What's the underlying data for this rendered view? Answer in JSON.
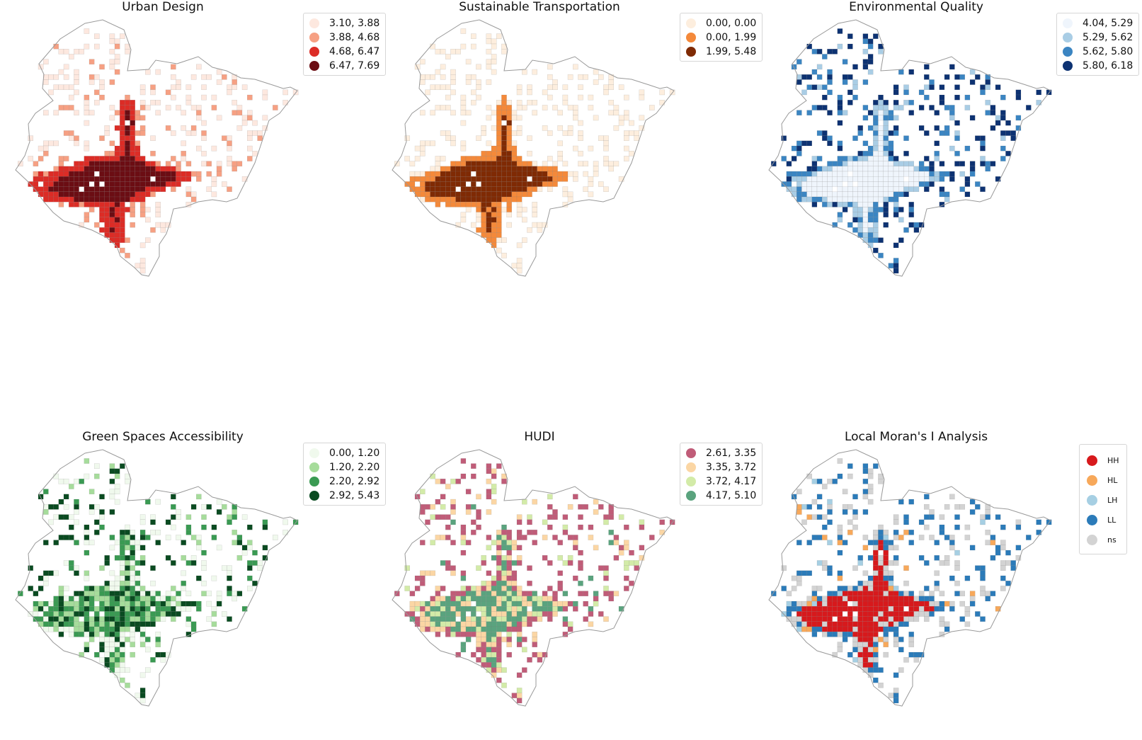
{
  "outline_color": "#999999",
  "panels": [
    {
      "id": "urban-design",
      "title": "Urban Design",
      "legend": [
        {
          "label": "3.10, 3.88",
          "color": "#fde8df"
        },
        {
          "label": "3.88, 4.68",
          "color": "#f6a083"
        },
        {
          "label": "4.68, 6.47",
          "color": "#dc2c26"
        },
        {
          "label": "6.47, 7.69",
          "color": "#6b0d13"
        }
      ]
    },
    {
      "id": "sustainable-transportation",
      "title": "Sustainable Transportation",
      "legend": [
        {
          "label": "0.00, 0.00",
          "color": "#fdeede"
        },
        {
          "label": "0.00, 1.99",
          "color": "#f4893a"
        },
        {
          "label": "1.99, 5.48",
          "color": "#7f2a04"
        }
      ]
    },
    {
      "id": "environmental-quality",
      "title": "Environmental Quality",
      "legend": [
        {
          "label": "4.04, 5.29",
          "color": "#eff5fc"
        },
        {
          "label": "5.29, 5.62",
          "color": "#a9cde5"
        },
        {
          "label": "5.62, 5.80",
          "color": "#3b85c2"
        },
        {
          "label": "5.80, 6.18",
          "color": "#0d3272"
        }
      ]
    },
    {
      "id": "green-spaces-accessibility",
      "title": "Green Spaces Accessibility",
      "legend": [
        {
          "label": "0.00, 1.20",
          "color": "#f0f9ed"
        },
        {
          "label": "1.20, 2.20",
          "color": "#a6dc9b"
        },
        {
          "label": "2.20, 2.92",
          "color": "#3a9a53"
        },
        {
          "label": "2.92, 5.43",
          "color": "#0a4b21"
        }
      ]
    },
    {
      "id": "hudi",
      "title": "HUDI",
      "legend": [
        {
          "label": "2.61, 3.35",
          "color": "#c05c78"
        },
        {
          "label": "3.35, 3.72",
          "color": "#fbd6a4"
        },
        {
          "label": "3.72, 4.17",
          "color": "#d3eba8"
        },
        {
          "label": "4.17, 5.10",
          "color": "#5aa37e"
        }
      ]
    },
    {
      "id": "local-morans-i",
      "title": "Local Moran's I Analysis",
      "legend": [
        {
          "label": "HH",
          "color": "#d7191c"
        },
        {
          "label": "HL",
          "color": "#f7a85a"
        },
        {
          "label": "LH",
          "color": "#a6cfe3"
        },
        {
          "label": "LL",
          "color": "#2b7bb9"
        },
        {
          "label": "ns",
          "color": "#d3d3d3"
        }
      ]
    }
  ]
}
